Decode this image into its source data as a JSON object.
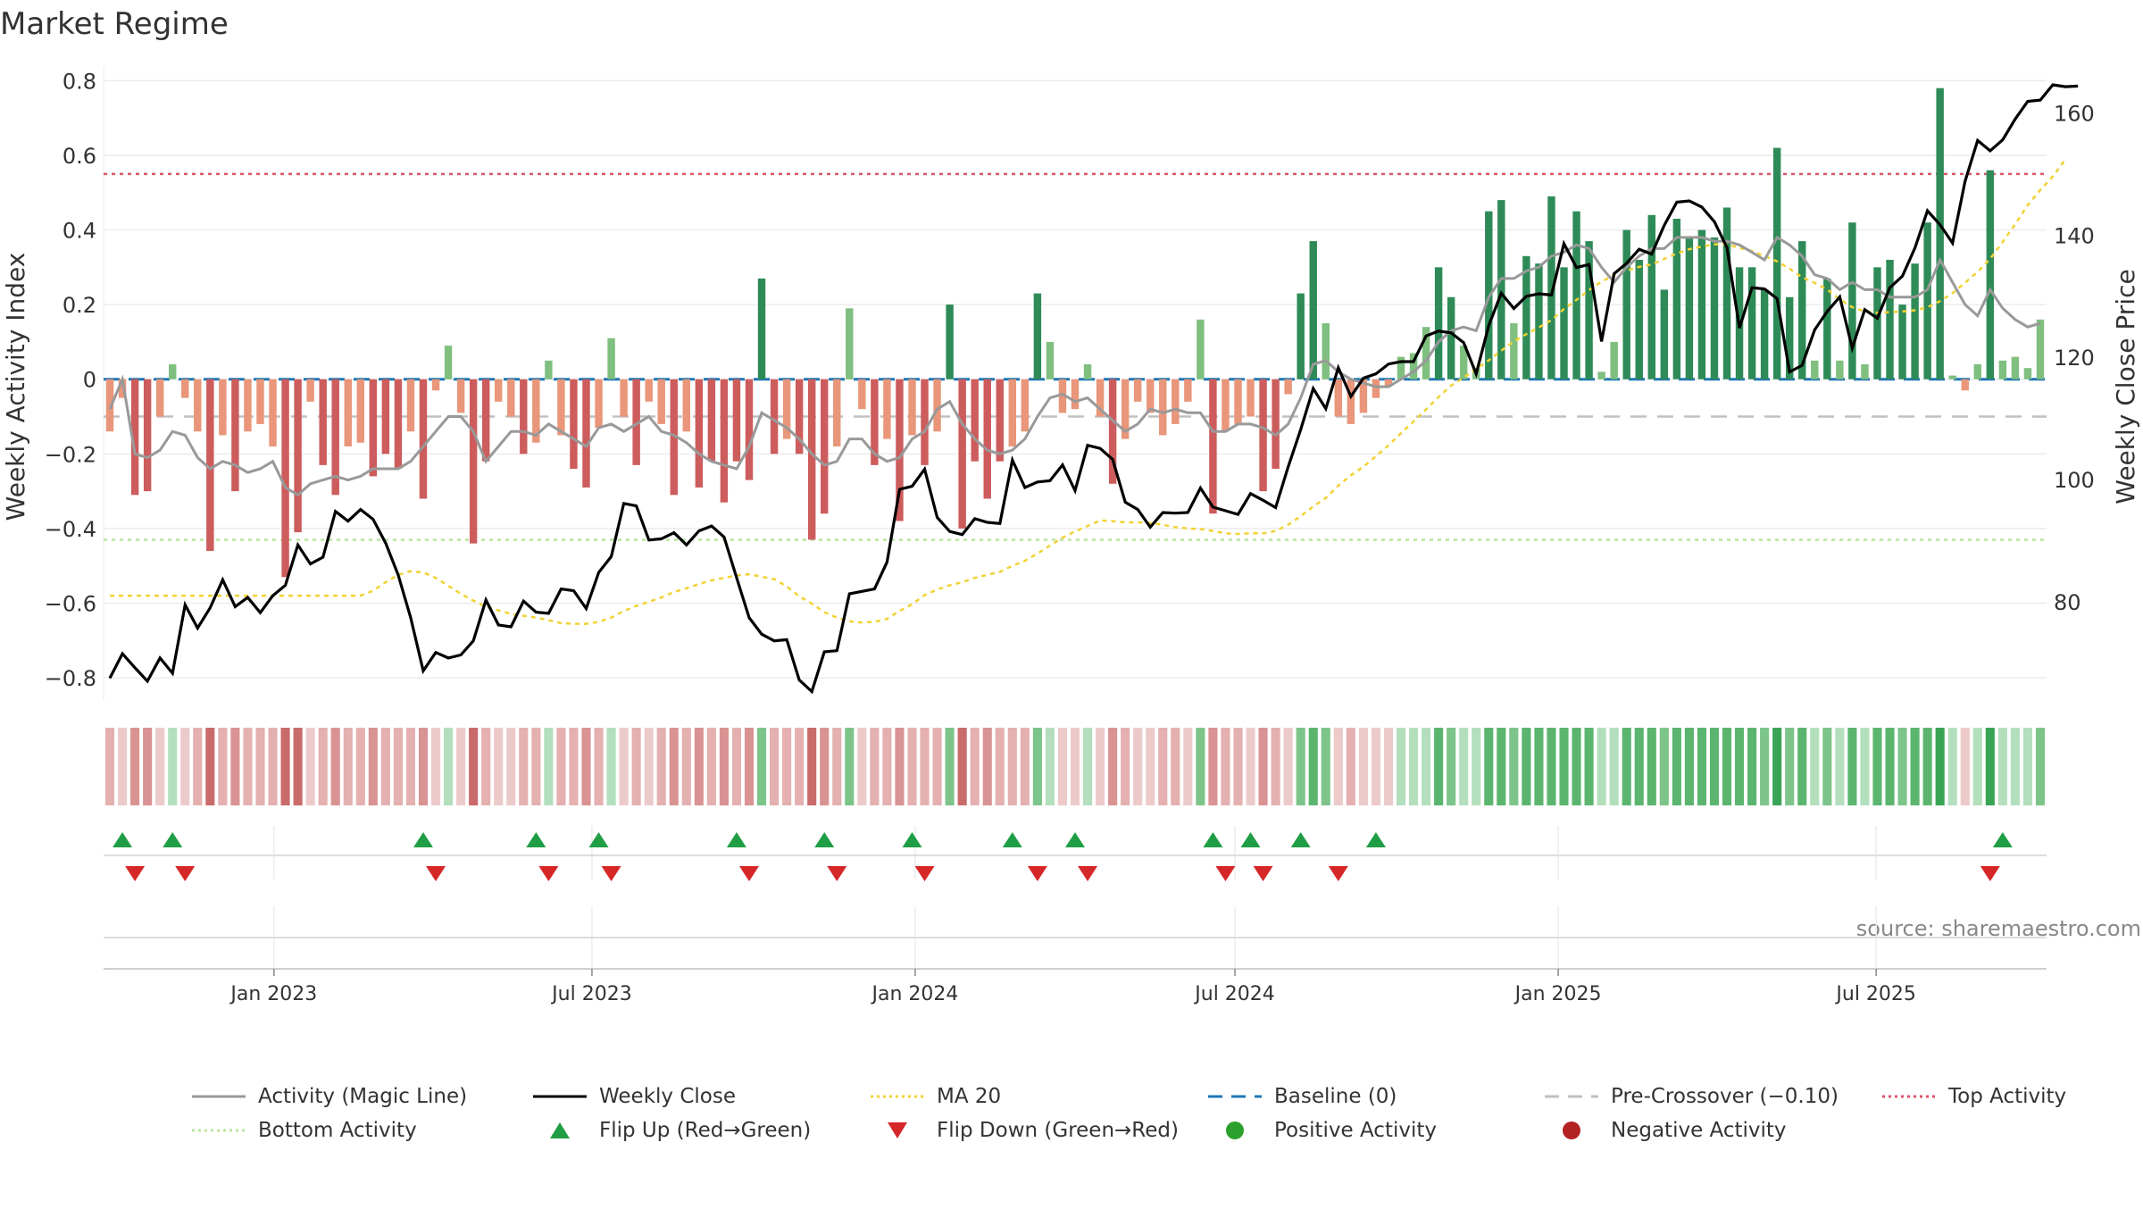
{
  "chart_data": {
    "type": "bar",
    "title": "Market Regime",
    "ylabel": "Weekly Activity Index",
    "y2label": "Weekly Close Price",
    "source": "source: sharemaestro.com",
    "ylim": [
      -0.85,
      0.82
    ],
    "y2lim": [
      64.5,
      166.5
    ],
    "yticks": [
      0.8,
      0.6,
      0.4,
      0.2,
      0,
      -0.2,
      -0.4,
      -0.6,
      -0.8
    ],
    "ytick_labels": [
      "0.8",
      "0.6",
      "0.4",
      "0.2",
      "0",
      "−0.2",
      "−0.4",
      "−0.6",
      "−0.8"
    ],
    "y2ticks": [
      160,
      140,
      120,
      100,
      80
    ],
    "y2tick_labels": [
      "160",
      "140",
      "120",
      "100",
      "80"
    ],
    "x_start": "2022-09-26",
    "x_end": "2025-10-06",
    "xticks": [
      {
        "date": "2023-01-01",
        "label": "Jan 2023"
      },
      {
        "date": "2023-07-01",
        "label": "Jul 2023"
      },
      {
        "date": "2024-01-01",
        "label": "Jan 2024"
      },
      {
        "date": "2024-07-01",
        "label": "Jul 2024"
      },
      {
        "date": "2025-01-01",
        "label": "Jan 2025"
      },
      {
        "date": "2025-07-01",
        "label": "Jul 2025"
      }
    ],
    "top_activity": 0.55,
    "bottom_activity": -0.43,
    "pre_crossover": -0.1,
    "baseline": 0,
    "activity": [
      -0.14,
      -0.05,
      -0.31,
      -0.3,
      -0.1,
      0.04,
      -0.05,
      -0.14,
      -0.46,
      -0.15,
      -0.3,
      -0.14,
      -0.12,
      -0.18,
      -0.53,
      -0.41,
      -0.06,
      -0.23,
      -0.31,
      -0.18,
      -0.17,
      -0.26,
      -0.2,
      -0.24,
      -0.14,
      -0.32,
      -0.03,
      0.09,
      -0.09,
      -0.44,
      -0.22,
      -0.06,
      -0.1,
      -0.2,
      -0.17,
      0.05,
      -0.15,
      -0.24,
      -0.29,
      -0.13,
      0.11,
      -0.1,
      -0.23,
      -0.06,
      -0.12,
      -0.31,
      -0.14,
      -0.29,
      -0.22,
      -0.33,
      -0.22,
      -0.27,
      0.27,
      -0.2,
      -0.16,
      -0.2,
      -0.43,
      -0.36,
      -0.18,
      0.19,
      -0.08,
      -0.23,
      -0.16,
      -0.38,
      -0.15,
      -0.23,
      -0.14,
      0.2,
      -0.4,
      -0.22,
      -0.32,
      -0.22,
      -0.18,
      -0.14,
      0.23,
      0.1,
      -0.09,
      -0.08,
      0.04,
      -0.1,
      -0.28,
      -0.16,
      -0.06,
      -0.09,
      -0.15,
      -0.12,
      -0.06,
      0.16,
      -0.36,
      -0.14,
      -0.12,
      -0.1,
      -0.3,
      -0.24,
      -0.04,
      0.23,
      0.37,
      0.15,
      -0.1,
      -0.12,
      -0.09,
      -0.05,
      -0.02,
      0.06,
      0.07,
      0.14,
      0.3,
      0.22,
      0.09,
      0.03,
      0.45,
      0.48,
      0.15,
      0.33,
      0.31,
      0.49,
      0.3,
      0.45,
      0.37,
      0.02,
      0.1,
      0.4,
      0.32,
      0.44,
      0.24,
      0.43,
      0.38,
      0.4,
      0.38,
      0.46,
      0.3,
      0.3,
      0.24,
      0.62,
      0.22,
      0.37,
      0.05,
      0.27,
      0.05,
      0.42,
      0.04,
      0.3,
      0.32,
      0.2,
      0.31,
      0.42,
      0.78,
      0.01,
      -0.03,
      0.04,
      0.56,
      0.05,
      0.06,
      0.03,
      0.16
    ],
    "magic_line": [
      -0.08,
      0.0,
      -0.2,
      -0.21,
      -0.19,
      -0.14,
      -0.15,
      -0.21,
      -0.24,
      -0.22,
      -0.23,
      -0.25,
      -0.24,
      -0.22,
      -0.29,
      -0.31,
      -0.28,
      -0.27,
      -0.26,
      -0.27,
      -0.26,
      -0.24,
      -0.24,
      -0.24,
      -0.22,
      -0.18,
      -0.14,
      -0.1,
      -0.1,
      -0.14,
      -0.22,
      -0.18,
      -0.14,
      -0.14,
      -0.15,
      -0.12,
      -0.14,
      -0.16,
      -0.18,
      -0.13,
      -0.12,
      -0.14,
      -0.12,
      -0.1,
      -0.14,
      -0.15,
      -0.17,
      -0.2,
      -0.22,
      -0.23,
      -0.24,
      -0.18,
      -0.09,
      -0.11,
      -0.13,
      -0.16,
      -0.2,
      -0.23,
      -0.22,
      -0.16,
      -0.16,
      -0.2,
      -0.22,
      -0.21,
      -0.16,
      -0.14,
      -0.08,
      -0.06,
      -0.12,
      -0.16,
      -0.19,
      -0.2,
      -0.19,
      -0.16,
      -0.1,
      -0.05,
      -0.04,
      -0.06,
      -0.05,
      -0.08,
      -0.11,
      -0.14,
      -0.12,
      -0.08,
      -0.09,
      -0.08,
      -0.09,
      -0.09,
      -0.14,
      -0.14,
      -0.12,
      -0.12,
      -0.13,
      -0.15,
      -0.12,
      -0.05,
      0.04,
      0.05,
      0.02,
      0.0,
      -0.01,
      -0.02,
      -0.02,
      -0.0,
      0.02,
      0.05,
      0.1,
      0.13,
      0.14,
      0.13,
      0.22,
      0.27,
      0.27,
      0.29,
      0.3,
      0.33,
      0.34,
      0.36,
      0.35,
      0.3,
      0.26,
      0.3,
      0.33,
      0.35,
      0.35,
      0.38,
      0.38,
      0.38,
      0.37,
      0.37,
      0.36,
      0.34,
      0.32,
      0.38,
      0.36,
      0.33,
      0.28,
      0.27,
      0.24,
      0.26,
      0.24,
      0.24,
      0.22,
      0.22,
      0.22,
      0.24,
      0.32,
      0.26,
      0.2,
      0.17,
      0.24,
      0.19,
      0.16,
      0.14,
      0.15
    ],
    "weekly_close": [
      67.5,
      71.5,
      69.2,
      67.0,
      70.8,
      68.3,
      79.5,
      75.7,
      79.0,
      83.6,
      79.2,
      80.7,
      78.2,
      81.0,
      82.7,
      89.3,
      86.2,
      87.3,
      94.8,
      93.2,
      95.1,
      93.5,
      89.6,
      84.4,
      77.4,
      68.7,
      71.7,
      70.8,
      71.3,
      73.6,
      80.3,
      76.2,
      75.9,
      80.1,
      78.3,
      78.1,
      82.1,
      81.8,
      78.9,
      84.8,
      87.4,
      96.1,
      95.7,
      90.1,
      90.3,
      91.3,
      89.3,
      91.6,
      92.4,
      90.6,
      83.9,
      77.4,
      74.7,
      73.6,
      73.8,
      67.2,
      65.3,
      71.8,
      72.0,
      81.3,
      81.7,
      82.1,
      86.5,
      98.4,
      98.9,
      101.7,
      93.8,
      91.5,
      91.0,
      93.6,
      93.0,
      92.8,
      103.2,
      98.7,
      99.6,
      99.8,
      102.4,
      98.2,
      105.6,
      105.1,
      103.3,
      96.3,
      95.1,
      92.2,
      94.6,
      94.5,
      94.6,
      98.6,
      95.5,
      94.9,
      94.3,
      97.7,
      96.6,
      95.4,
      102.1,
      108.2,
      114.9,
      111.6,
      118.3,
      113.6,
      116.6,
      117.3,
      118.9,
      119.3,
      119.3,
      123.5,
      124.3,
      124.0,
      122.4,
      117.3,
      125.2,
      130.5,
      128.0,
      130.0,
      130.4,
      130.2,
      138.6,
      134.7,
      135.2,
      122.6,
      133.7,
      135.4,
      137.7,
      136.9,
      141.6,
      145.4,
      145.6,
      144.6,
      142.2,
      138.0,
      124.8,
      131.4,
      131.2,
      129.6,
      117.6,
      118.7,
      124.5,
      127.5,
      129.9,
      121.5,
      127.8,
      126.4,
      131.4,
      133.3,
      137.9,
      144.0,
      141.7,
      138.7,
      148.8,
      155.5,
      153.8,
      155.6,
      159.0,
      161.9,
      162.1,
      164.6,
      164.3,
      164.4
    ],
    "ma20": [
      81.0,
      81.0,
      81.0,
      81.0,
      81.0,
      81.0,
      81.0,
      81.0,
      81.0,
      81.0,
      81.0,
      81.0,
      81.0,
      81.0,
      81.0,
      81.0,
      81.0,
      81.0,
      81.0,
      81.0,
      81.0,
      81.8,
      83.2,
      84.4,
      85.0,
      84.8,
      83.9,
      82.6,
      81.3,
      80.2,
      79.2,
      78.6,
      78.0,
      77.7,
      77.4,
      77.0,
      76.5,
      76.4,
      76.4,
      76.7,
      77.4,
      78.5,
      79.3,
      80.0,
      80.7,
      81.6,
      82.2,
      82.9,
      83.5,
      83.9,
      84.3,
      84.5,
      84.1,
      83.7,
      82.5,
      80.9,
      79.7,
      78.3,
      77.4,
      76.8,
      76.6,
      76.7,
      77.2,
      78.5,
      79.6,
      81.1,
      82.0,
      82.7,
      83.2,
      83.9,
      84.4,
      84.9,
      85.9,
      86.7,
      87.9,
      89.2,
      90.5,
      91.5,
      92.4,
      93.3,
      93.2,
      93.0,
      93.0,
      92.9,
      92.6,
      92.2,
      92.0,
      91.9,
      91.6,
      91.2,
      91.1,
      91.2,
      91.2,
      91.6,
      92.6,
      94.0,
      95.6,
      97.0,
      99.0,
      100.7,
      102.1,
      103.8,
      105.6,
      107.6,
      109.5,
      111.5,
      113.5,
      115.4,
      116.7,
      118.1,
      119.5,
      121.1,
      122.6,
      123.8,
      124.9,
      126.1,
      127.9,
      129.4,
      131.0,
      132.4,
      133.5,
      134.2,
      134.8,
      135.2,
      136.1,
      137.0,
      137.7,
      138.1,
      138.5,
      138.5,
      137.9,
      137.4,
      136.6,
      135.7,
      134.5,
      133.1,
      132.2,
      131.1,
      129.5,
      128.2,
      127.5,
      127.3,
      127.4,
      127.5,
      127.7,
      128.2,
      129.2,
      130.5,
      132.2,
      134.0,
      136.1,
      138.9,
      141.8,
      144.9,
      147.4,
      149.6,
      152.4
    ],
    "flip_up_weeks": [
      1,
      5,
      25,
      34,
      39,
      50,
      57,
      64,
      72,
      77,
      88,
      91,
      95,
      101,
      151
    ],
    "flip_down_weeks": [
      2,
      6,
      26,
      35,
      40,
      51,
      58,
      65,
      74,
      78,
      89,
      92,
      98,
      150
    ]
  },
  "legend": {
    "items": [
      {
        "label": "Activity (Magic Line)"
      },
      {
        "label": "Weekly Close"
      },
      {
        "label": "MA 20"
      },
      {
        "label": "Baseline (0)"
      },
      {
        "label": "Pre-Crossover (−0.10)"
      },
      {
        "label": "Top Activity"
      },
      {
        "label": "Bottom Activity"
      },
      {
        "label": "Flip Up (Red→Green)"
      },
      {
        "label": "Flip Down (Green→Red)"
      },
      {
        "label": "Positive Activity"
      },
      {
        "label": "Negative Activity"
      }
    ]
  },
  "colors": {
    "pos_strong": "#2e8b57",
    "pos_weak": "#7fbf7f",
    "neg_strong": "#cd5c5c",
    "neg_weak": "#e9967a",
    "magic_line": "#999999",
    "weekly_close": "#000000",
    "ma20": "#f2d233",
    "baseline": "#1f77b4",
    "pre_crossover": "#c0c0c0",
    "top_activity": "#d9546a",
    "bottom_activity": "#b8e6a0",
    "flip_up": "#1f9e45",
    "flip_down": "#d62728",
    "positive_dot": "#2ca02c",
    "negative_dot": "#b22222"
  }
}
